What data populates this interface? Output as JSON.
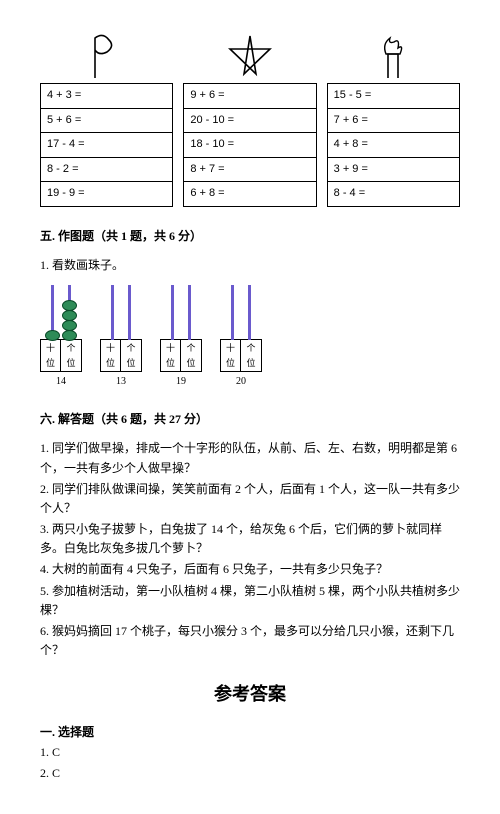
{
  "columns": [
    {
      "icon": "flag",
      "rows": [
        "4 + 3 =",
        "5 + 6 =",
        "17 - 4 =",
        "8 - 2 =",
        "19 - 9 ="
      ]
    },
    {
      "icon": "star",
      "rows": [
        "9 + 6 =",
        "20 - 10 =",
        "18 - 10 =",
        "8 + 7 =",
        "6 + 8 ="
      ]
    },
    {
      "icon": "torch",
      "rows": [
        "15 - 5 =",
        "7 + 6 =",
        "4 + 8 =",
        "3 + 9 =",
        "8 - 4 ="
      ]
    }
  ],
  "section5": {
    "heading": "五. 作图题（共 1 题，共 6 分）",
    "q1": "1. 看数画珠子。"
  },
  "abacus": {
    "tens_label": "十位",
    "ones_label": "个位",
    "items": [
      {
        "num": "14",
        "tens_beads": 1,
        "ones_beads": 4
      },
      {
        "num": "13",
        "tens_beads": 0,
        "ones_beads": 0
      },
      {
        "num": "19",
        "tens_beads": 0,
        "ones_beads": 0
      },
      {
        "num": "20",
        "tens_beads": 0,
        "ones_beads": 0
      }
    ]
  },
  "section6": {
    "heading": "六. 解答题（共 6 题，共 27 分）",
    "items": [
      "1. 同学们做早操，排成一个十字形的队伍，从前、后、左、右数，明明都是第 6 个，一共有多少个人做早操？",
      "2. 同学们排队做课间操，笑笑前面有 2 个人，后面有 1 个人，这一队一共有多少个人？",
      "3. 两只小兔子拔萝卜，白兔拔了 14 个，给灰兔 6 个后，它们俩的萝卜就同样多。白兔比灰兔多拔几个萝卜？",
      "4. 大树的前面有 4 只兔子，后面有 6 只兔子，一共有多少只兔子？",
      "5. 参加植树活动，第一小队植树 4 棵，第二小队植树 5 棵，两个小队共植树多少棵？",
      "6. 猴妈妈摘回 17 个桃子，每只小猴分 3 个，最多可以分给几只小猴，还剩下几个？"
    ]
  },
  "answers": {
    "title": "参考答案",
    "section_label": "一. 选择题",
    "items": [
      "1. C",
      "2. C"
    ]
  },
  "colors": {
    "rod": "#6a5acd",
    "bead": "#2e8b57",
    "bead_border": "#0a4a28"
  }
}
